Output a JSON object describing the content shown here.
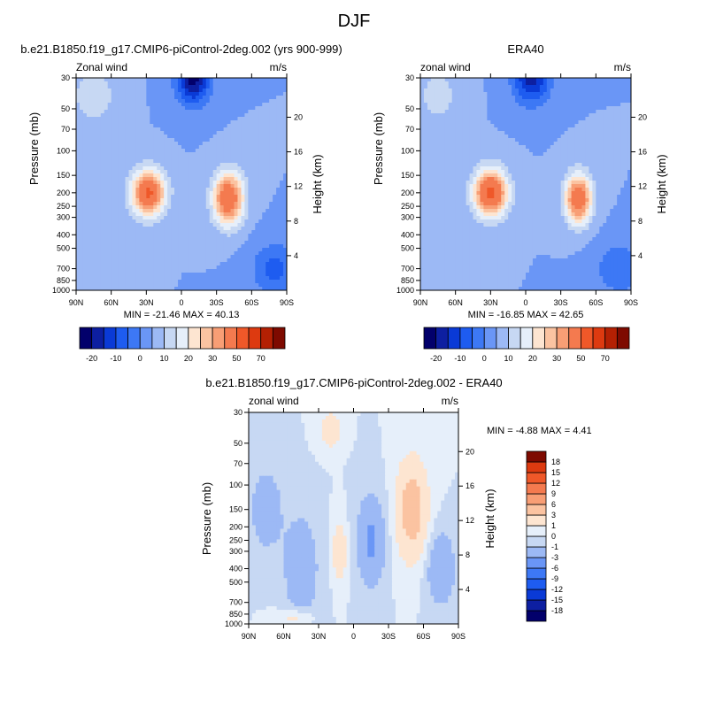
{
  "page_title": "DJF",
  "chart_data": [
    {
      "type": "heatmap",
      "title": "b.e21.B1850.f19_g17.CMIP6-piControl-2deg.002 (yrs 900-999)",
      "variable": "Zonal wind",
      "units": "m/s",
      "ylabel": "Pressure (mb)",
      "y2label": "Height (km)",
      "x_ticks": [
        "90N",
        "60N",
        "30N",
        "0",
        "30S",
        "60S",
        "90S"
      ],
      "y_ticks": [
        "30",
        "50",
        "70",
        "100",
        "150",
        "200",
        "250",
        "300",
        "400",
        "500",
        "700",
        "850",
        "1000"
      ],
      "y2_ticks": [
        "20",
        "16",
        "12",
        "8",
        "4"
      ],
      "stats": "MIN = -21.46  MAX =  40.13",
      "colorbar_labels": [
        "-20",
        "-10",
        "0",
        "10",
        "20",
        "30",
        "50",
        "70"
      ],
      "levels": [
        -25,
        -20,
        -15,
        -10,
        -5,
        0,
        5,
        10,
        15,
        20,
        25,
        30,
        40,
        50,
        60,
        70
      ],
      "colors": [
        "#02006b",
        "#0d1fa1",
        "#0a3ad6",
        "#1e5cf0",
        "#3d78f5",
        "#6a96f6",
        "#9cb9f5",
        "#c7d8f3",
        "#e6effa",
        "#fde5d1",
        "#fbc3a1",
        "#f89e75",
        "#f47a4f",
        "#ef5829",
        "#dd3a10",
        "#b42003",
        "#7e0a00"
      ],
      "features": [
        {
          "lat": 28,
          "p": 200,
          "amp": 42,
          "wlat": 10,
          "wlogp": 0.26
        },
        {
          "lat": -40,
          "p": 220,
          "amp": 40,
          "wlat": 9,
          "wlogp": 0.3
        },
        {
          "lat": -10,
          "p": 30,
          "amp": -27,
          "wlat": 10,
          "wlogp": 0.3
        },
        {
          "lat": -80,
          "p": 700,
          "amp": -12,
          "wlat": 14,
          "wlogp": 0.3
        },
        {
          "lat": 75,
          "p": 40,
          "amp": 10,
          "wlat": 12,
          "wlogp": 0.3
        }
      ]
    },
    {
      "type": "heatmap",
      "title": "ERA40",
      "variable": "zonal wind",
      "units": "m/s",
      "ylabel": "Pressure (mb)",
      "y2label": "Height (km)",
      "x_ticks": [
        "90N",
        "60N",
        "30N",
        "0",
        "30S",
        "60S",
        "90S"
      ],
      "y_ticks": [
        "30",
        "50",
        "70",
        "100",
        "150",
        "200",
        "250",
        "300",
        "400",
        "500",
        "700",
        "850",
        "1000"
      ],
      "y2_ticks": [
        "20",
        "16",
        "12",
        "8",
        "4"
      ],
      "stats": "MIN = -16.85  MAX =  42.65",
      "colorbar_labels": [
        "-20",
        "-10",
        "0",
        "10",
        "20",
        "30",
        "50",
        "70"
      ],
      "levels": [
        -25,
        -20,
        -15,
        -10,
        -5,
        0,
        5,
        10,
        15,
        20,
        25,
        30,
        40,
        50,
        60,
        70
      ],
      "colors": [
        "#02006b",
        "#0d1fa1",
        "#0a3ad6",
        "#1e5cf0",
        "#3d78f5",
        "#6a96f6",
        "#9cb9f5",
        "#c7d8f3",
        "#e6effa",
        "#fde5d1",
        "#fbc3a1",
        "#f89e75",
        "#f47a4f",
        "#ef5829",
        "#dd3a10",
        "#b42003",
        "#7e0a00"
      ],
      "features": [
        {
          "lat": 30,
          "p": 200,
          "amp": 44,
          "wlat": 10,
          "wlogp": 0.27
        },
        {
          "lat": -45,
          "p": 220,
          "amp": 39,
          "wlat": 8,
          "wlogp": 0.28
        },
        {
          "lat": -5,
          "p": 30,
          "amp": -22,
          "wlat": 11,
          "wlogp": 0.3
        },
        {
          "lat": -80,
          "p": 700,
          "amp": -10,
          "wlat": 14,
          "wlogp": 0.3
        },
        {
          "lat": 75,
          "p": 40,
          "amp": 8,
          "wlat": 12,
          "wlogp": 0.3
        }
      ]
    },
    {
      "type": "heatmap",
      "title": "b.e21.B1850.f19_g17.CMIP6-piControl-2deg.002 - ERA40",
      "variable": "zonal wind",
      "units": "m/s",
      "ylabel": "Pressure (mb)",
      "y2label": "Height (km)",
      "x_ticks": [
        "90N",
        "60N",
        "30N",
        "0",
        "30S",
        "60S",
        "90S"
      ],
      "y_ticks": [
        "30",
        "50",
        "70",
        "100",
        "150",
        "200",
        "250",
        "300",
        "400",
        "500",
        "700",
        "850",
        "1000"
      ],
      "y2_ticks": [
        "20",
        "16",
        "12",
        "8",
        "4"
      ],
      "stats": "MIN =  -4.88  MAX =   4.41",
      "colorbar_labels": [
        "18",
        "15",
        "12",
        "9",
        "6",
        "3",
        "1",
        "0",
        "-1",
        "-3",
        "-6",
        "-9",
        "-12",
        "-15",
        "-18"
      ],
      "levels": [
        -18,
        -15,
        -12,
        -9,
        -6,
        -3,
        -1,
        0,
        1,
        3,
        6,
        9,
        12,
        15,
        18
      ],
      "colors": [
        "#02006b",
        "#0d1fa1",
        "#0a3ad6",
        "#1e5cf0",
        "#3d78f5",
        "#6a96f6",
        "#9cb9f5",
        "#c7d8f3",
        "#e6effa",
        "#fde5d1",
        "#fbc3a1",
        "#f89e75",
        "#f47a4f",
        "#ef5829",
        "#dd3a10",
        "#7e0a00"
      ],
      "features": [
        {
          "lat": -50,
          "p": 150,
          "amp": 4.6,
          "wlat": 9,
          "wlogp": 0.55
        },
        {
          "lat": 12,
          "p": 300,
          "amp": 2.5,
          "wlat": 4,
          "wlogp": 0.35
        },
        {
          "lat": 20,
          "p": 40,
          "amp": 2.5,
          "wlat": 6,
          "wlogp": 0.2
        },
        {
          "lat": -15,
          "p": 250,
          "amp": -3.5,
          "wlat": 8,
          "wlogp": 0.5
        },
        {
          "lat": 45,
          "p": 400,
          "amp": -2.5,
          "wlat": 10,
          "wlogp": 0.6
        },
        {
          "lat": 75,
          "p": 150,
          "amp": -2,
          "wlat": 10,
          "wlogp": 0.5
        },
        {
          "lat": 50,
          "p": 900,
          "amp": 2,
          "wlat": 10,
          "wlogp": 0.1
        },
        {
          "lat": -75,
          "p": 400,
          "amp": -3,
          "wlat": 8,
          "wlogp": 0.4
        }
      ]
    }
  ]
}
